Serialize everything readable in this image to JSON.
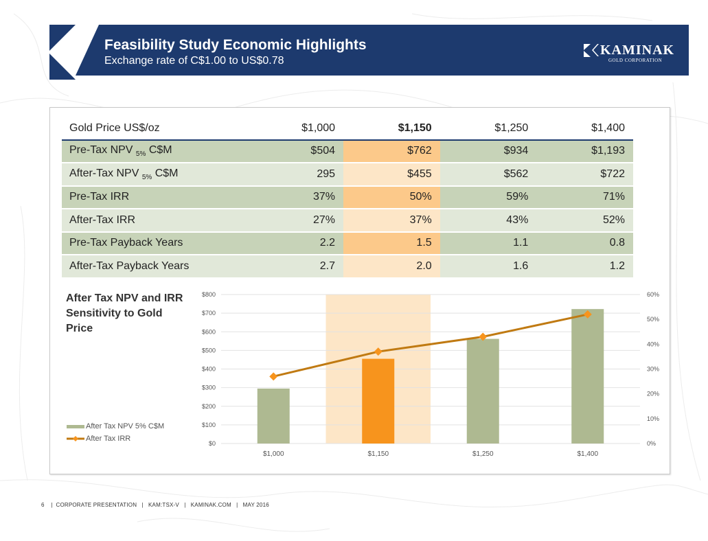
{
  "header": {
    "title": "Feasibility Study Economic Highlights",
    "subtitle": "Exchange rate of C$1.00 to US$0.78",
    "brand_name": "KAMINAK",
    "brand_sub": "GOLD CORPORATION"
  },
  "table": {
    "header_label": "Gold Price US$/oz",
    "columns": [
      "$1,000",
      "$1,150",
      "$1,250",
      "$1,400"
    ],
    "rows": [
      {
        "label_main": "Pre-Tax NPV ",
        "label_sub": "5%",
        "label_tail": " C$M",
        "values": [
          "$504",
          "$762",
          "$934",
          "$1,193"
        ]
      },
      {
        "label_main": "After-Tax NPV ",
        "label_sub": "5%",
        "label_tail": " C$M",
        "values": [
          "295",
          "$455",
          "$562",
          "$722"
        ]
      },
      {
        "label_main": "Pre-Tax IRR",
        "label_sub": "",
        "label_tail": "",
        "values": [
          "37%",
          "50%",
          "59%",
          "71%"
        ]
      },
      {
        "label_main": "After-Tax IRR",
        "label_sub": "",
        "label_tail": "",
        "values": [
          "27%",
          "37%",
          "43%",
          "52%"
        ]
      },
      {
        "label_main": "Pre-Tax Payback Years",
        "label_sub": "",
        "label_tail": "",
        "values": [
          "2.2",
          "1.5",
          "1.1",
          "0.8"
        ]
      },
      {
        "label_main": "After-Tax Payback Years",
        "label_sub": "",
        "label_tail": "",
        "values": [
          "2.7",
          "2.0",
          "1.6",
          "1.2"
        ]
      }
    ]
  },
  "chart_data": {
    "type": "bar",
    "title": "After Tax NPV and IRR Sensitivity to Gold Price",
    "categories": [
      "$1,000",
      "$1,150",
      "$1,250",
      "$1,400"
    ],
    "highlight_category": "$1,150",
    "series": [
      {
        "name": "After Tax NPV 5% C$M",
        "type": "bar",
        "axis": "left",
        "values": [
          295,
          455,
          562,
          722
        ],
        "color": "#aeb991",
        "highlight_color": "#f7941d"
      },
      {
        "name": "After Tax IRR",
        "type": "line",
        "axis": "right",
        "values": [
          27,
          37,
          43,
          52
        ],
        "color": "#c07a12",
        "marker_color": "#f7941d"
      }
    ],
    "y_left": {
      "min": 0,
      "max": 800,
      "ticks": [
        "$0",
        "$100",
        "$200",
        "$300",
        "$400",
        "$500",
        "$600",
        "$700",
        "$800"
      ]
    },
    "y_right": {
      "min": 0,
      "max": 60,
      "ticks": [
        "0%",
        "10%",
        "20%",
        "30%",
        "40%",
        "50%",
        "60%"
      ]
    },
    "highlight_band_color": "#fde6c7",
    "grid": true,
    "legend_position": "left"
  },
  "footer": {
    "text": "6    |  CORPORATE PRESENTATION   |   KAM:TSX-V   |   KAMINAK.COM   |   MAY 2016"
  },
  "colors": {
    "header_band": "#1d3a6e",
    "row_dark": "#c7d3b8",
    "row_light": "#e1e8d9",
    "highlight_dark": "#fcc98a",
    "highlight_light": "#fde6c7"
  }
}
